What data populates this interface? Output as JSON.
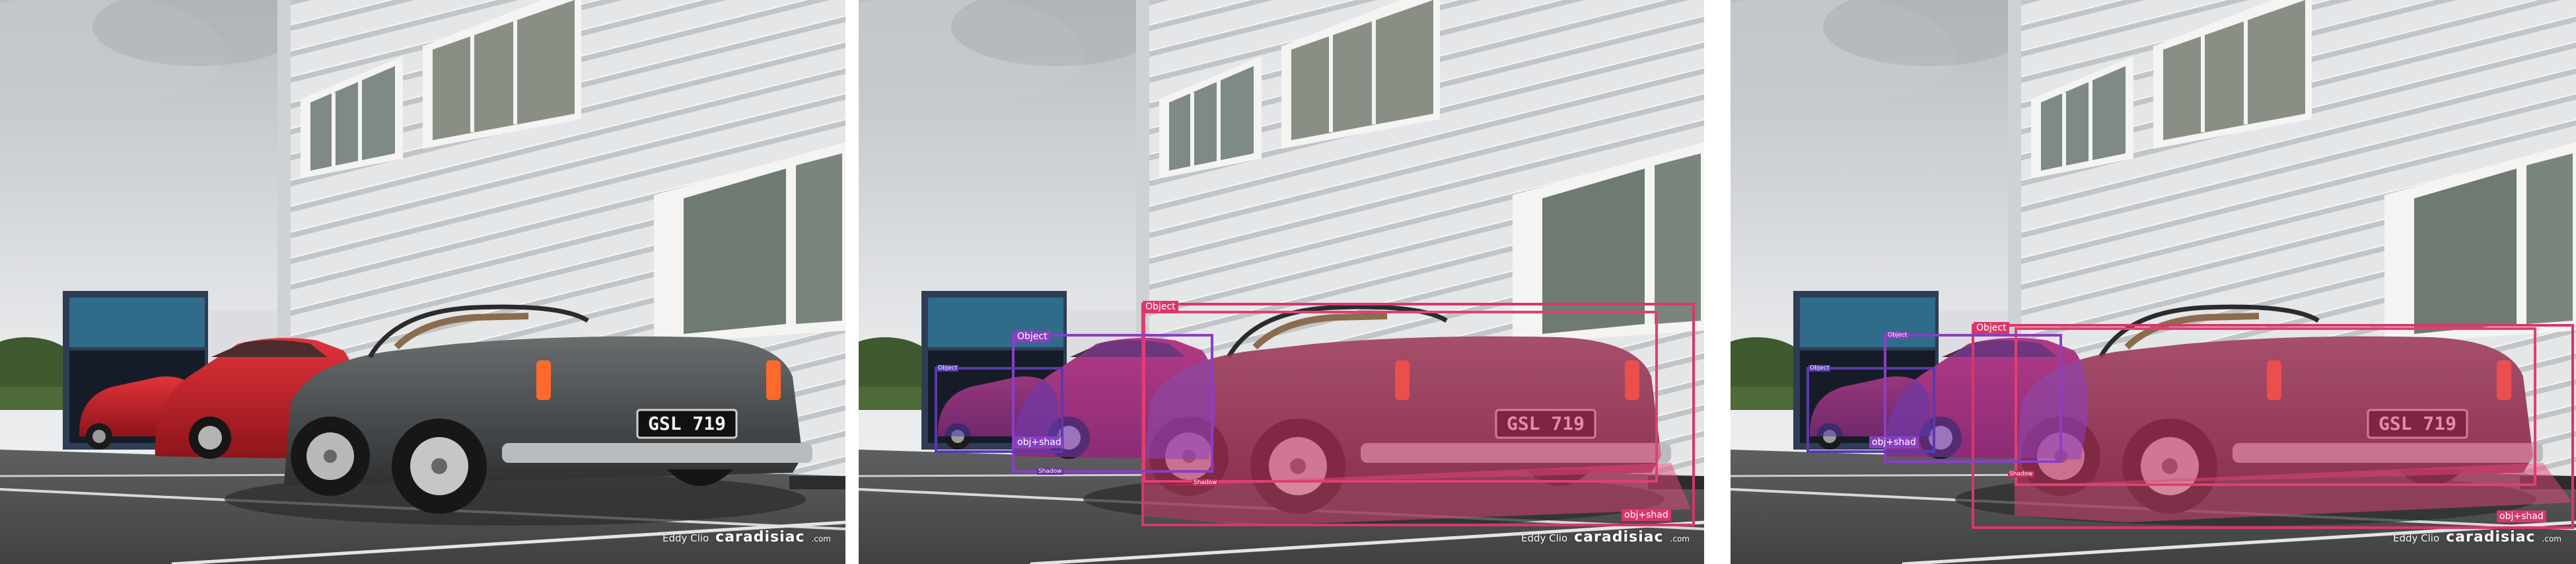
{
  "credit": {
    "author": "Eddy Clio",
    "brand": "caradisiac",
    "domain": ".com"
  },
  "plate": "GSL 719",
  "colors": {
    "object": "#d9366a",
    "object_secondary": "#8a3fc2",
    "object_tertiary": "#5a3ab0",
    "shadow": "#e8487a"
  },
  "panels": [
    {
      "name": "original",
      "labels": []
    },
    {
      "name": "annotated-1",
      "labels": {
        "main_object": "Object",
        "main_objshad": "obj+shad",
        "main_shadow": "Shadow",
        "mid_object": "Object",
        "mid_objshad": "obj+shad",
        "mid_shadow": "Shadow",
        "far_object": "Object"
      }
    },
    {
      "name": "annotated-2",
      "labels": {
        "main_object": "Object",
        "main_objshad": "obj+shad",
        "main_shadow": "Shadow",
        "mid_object": "Object",
        "mid_objshad": "obj+shad",
        "far_object": "Object"
      }
    }
  ]
}
